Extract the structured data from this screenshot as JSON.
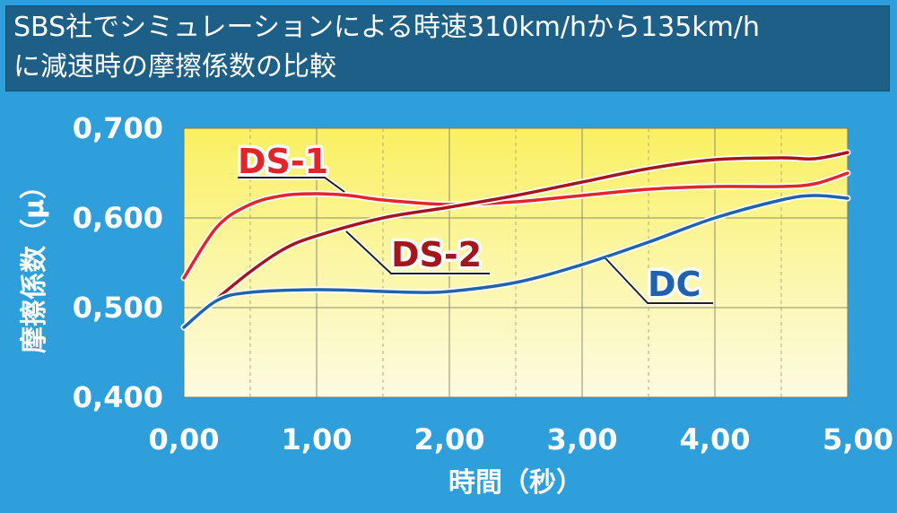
{
  "title": {
    "line1": "SBS社でシミュレーションによる時速310km/hから135km/h",
    "line2": "に減速時の摩擦係数の比較"
  },
  "colors": {
    "background": "#2f9fdc",
    "title_background": "#1d5f86",
    "ds1": "#e2252b",
    "ds2": "#a3161c",
    "dc": "#1f63ad",
    "ds1_label": "#e2252b",
    "ds2_label": "#a3161c",
    "dc_label": "#1f63ad"
  },
  "chart_data": {
    "type": "line",
    "title": "SBS社でシミュレーションによる時速310km/hから135km/hに減速時の摩擦係数の比較",
    "xlabel": "時間（秒）",
    "ylabel": "摩擦係数（μ）",
    "xlim": [
      0,
      5
    ],
    "ylim": [
      0.4,
      0.7
    ],
    "x_ticks": [
      0,
      1,
      2,
      3,
      4,
      5
    ],
    "x_tick_labels": [
      "0,00",
      "1,00",
      "2,00",
      "3,00",
      "4,00",
      "5,00"
    ],
    "y_ticks": [
      0.4,
      0.5,
      0.6,
      0.7
    ],
    "y_tick_labels": [
      "0,400",
      "0,500",
      "0,600",
      "0,700"
    ],
    "grid": true,
    "legend": "inline labels",
    "series": [
      {
        "name": "DS-1",
        "x": [
          0,
          0.25,
          0.5,
          0.75,
          1.0,
          1.25,
          1.5,
          2.0,
          2.5,
          3.0,
          3.5,
          4.0,
          4.5,
          4.75,
          5.0
        ],
        "y": [
          0.533,
          0.59,
          0.615,
          0.625,
          0.627,
          0.625,
          0.62,
          0.615,
          0.618,
          0.625,
          0.632,
          0.635,
          0.635,
          0.638,
          0.65
        ]
      },
      {
        "name": "DS-2",
        "x": [
          0,
          0.25,
          0.5,
          0.75,
          1.0,
          1.5,
          2.0,
          2.5,
          3.0,
          3.5,
          4.0,
          4.5,
          4.75,
          5.0
        ],
        "y": [
          0.478,
          0.51,
          0.54,
          0.565,
          0.58,
          0.6,
          0.612,
          0.625,
          0.64,
          0.655,
          0.665,
          0.667,
          0.666,
          0.673
        ]
      },
      {
        "name": "DC",
        "x": [
          0,
          0.25,
          0.5,
          1.0,
          1.5,
          1.75,
          2.0,
          2.5,
          3.0,
          3.5,
          4.0,
          4.5,
          4.75,
          5.0
        ],
        "y": [
          0.478,
          0.508,
          0.517,
          0.52,
          0.518,
          0.517,
          0.518,
          0.528,
          0.548,
          0.573,
          0.6,
          0.62,
          0.625,
          0.622
        ]
      }
    ]
  }
}
